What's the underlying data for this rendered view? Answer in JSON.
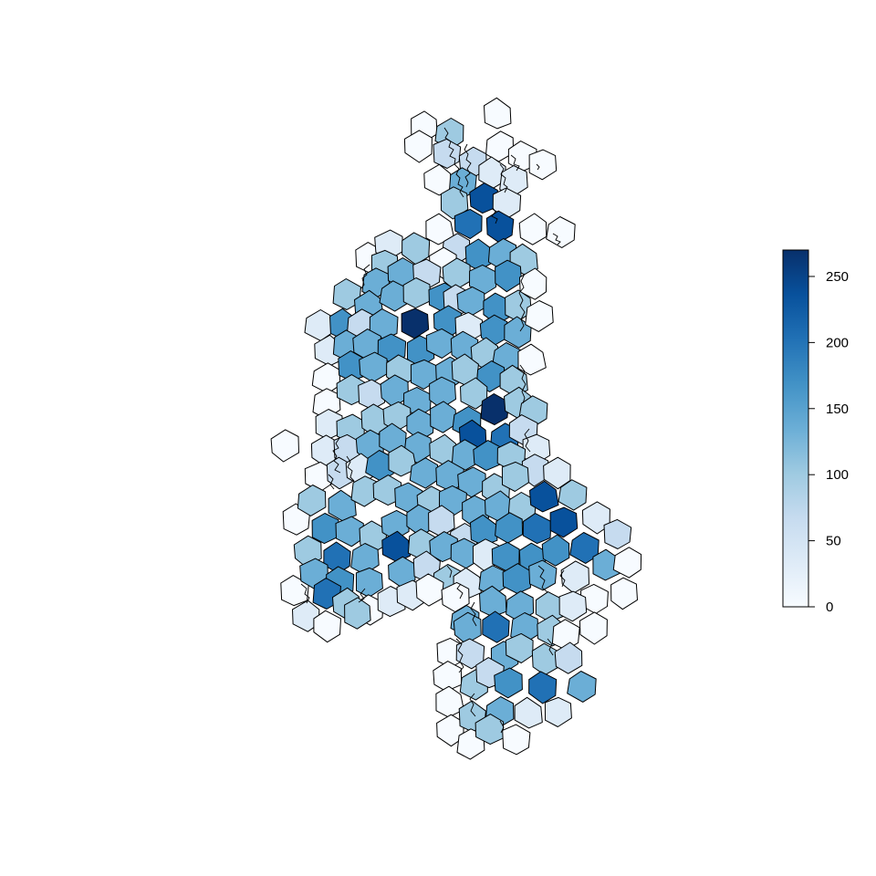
{
  "map": {
    "type": "choropleth-hexagonal-voronoi",
    "palette": [
      "#f7fbff",
      "#deebf7",
      "#c6dbef",
      "#9ecae1",
      "#6baed6",
      "#4292c6",
      "#2171b5",
      "#08519c",
      "#08306b"
    ],
    "border_color": "#000000",
    "background": "#ffffff"
  },
  "legend": {
    "min": 0,
    "max": 270,
    "ticks": [
      {
        "value": 0,
        "label": "0"
      },
      {
        "value": 50,
        "label": "50"
      },
      {
        "value": 100,
        "label": "100"
      },
      {
        "value": 150,
        "label": "150"
      },
      {
        "value": 200,
        "label": "200"
      },
      {
        "value": 250,
        "label": "250"
      }
    ]
  }
}
